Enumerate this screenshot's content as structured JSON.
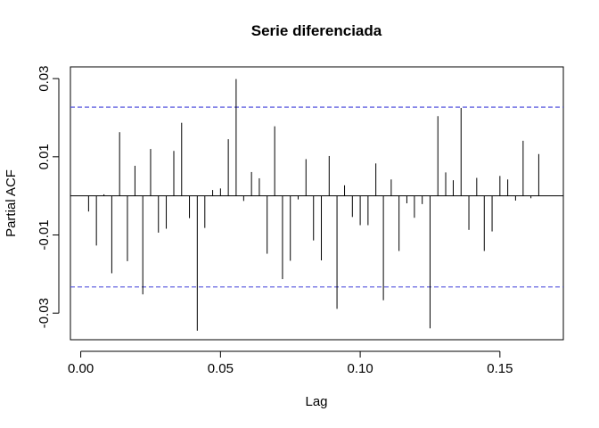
{
  "chart_data": {
    "type": "bar",
    "title": "Serie diferenciada",
    "xlabel": "Lag",
    "ylabel": "Partial ACF",
    "xlim": [
      -0.0037,
      0.1727
    ],
    "ylim": [
      -0.0368,
      0.033
    ],
    "xticks": [
      0.0,
      0.05,
      0.1,
      0.15
    ],
    "xtick_labels": [
      "0.00",
      "0.05",
      "0.10",
      "0.15"
    ],
    "yticks": [
      -0.03,
      -0.01,
      0.01,
      0.03
    ],
    "ytick_labels": [
      "-0.03",
      "-0.01",
      "0.01",
      "0.03"
    ],
    "confidence_bounds": [
      0.0227,
      -0.0233
    ],
    "colors": {
      "bars": "#000000",
      "confidence": "#5555dd",
      "zero_line": "#000000"
    },
    "x": [
      0.0028,
      0.0056,
      0.0083,
      0.0111,
      0.0139,
      0.0167,
      0.0194,
      0.0222,
      0.025,
      0.0278,
      0.0306,
      0.0333,
      0.0361,
      0.0389,
      0.0417,
      0.0444,
      0.0472,
      0.05,
      0.0528,
      0.0556,
      0.0583,
      0.0611,
      0.0639,
      0.0667,
      0.0694,
      0.0722,
      0.075,
      0.0778,
      0.0806,
      0.0833,
      0.0861,
      0.0889,
      0.0917,
      0.0944,
      0.0972,
      0.1,
      0.1028,
      0.1056,
      0.1083,
      0.1111,
      0.1139,
      0.1167,
      0.1194,
      0.1222,
      0.125,
      0.1278,
      0.1306,
      0.1333,
      0.1361,
      0.1389,
      0.1417,
      0.1444,
      0.1472,
      0.15,
      0.1528,
      0.1556,
      0.1583,
      0.1611,
      0.1639
    ],
    "values": [
      -0.004,
      -0.0127,
      0.0004,
      -0.0198,
      0.0163,
      -0.0167,
      0.0077,
      -0.0252,
      0.012,
      -0.0094,
      -0.0084,
      0.0115,
      0.0187,
      -0.0057,
      -0.0345,
      -0.0082,
      0.0015,
      0.0019,
      0.0145,
      0.0299,
      -0.0013,
      0.0061,
      0.0045,
      -0.0148,
      0.0178,
      -0.0213,
      -0.0166,
      -0.0009,
      0.0094,
      -0.0114,
      -0.0165,
      0.0102,
      -0.0289,
      0.0027,
      -0.0054,
      -0.0075,
      -0.0075,
      0.0083,
      -0.0267,
      0.0042,
      -0.0141,
      -0.0019,
      -0.0056,
      -0.0021,
      -0.0339,
      0.0204,
      0.006,
      0.004,
      0.0225,
      -0.0087,
      0.0046,
      -0.0141,
      -0.0091,
      0.0051,
      0.0042,
      -0.0012,
      0.0141,
      -0.0006,
      0.0107
    ]
  }
}
